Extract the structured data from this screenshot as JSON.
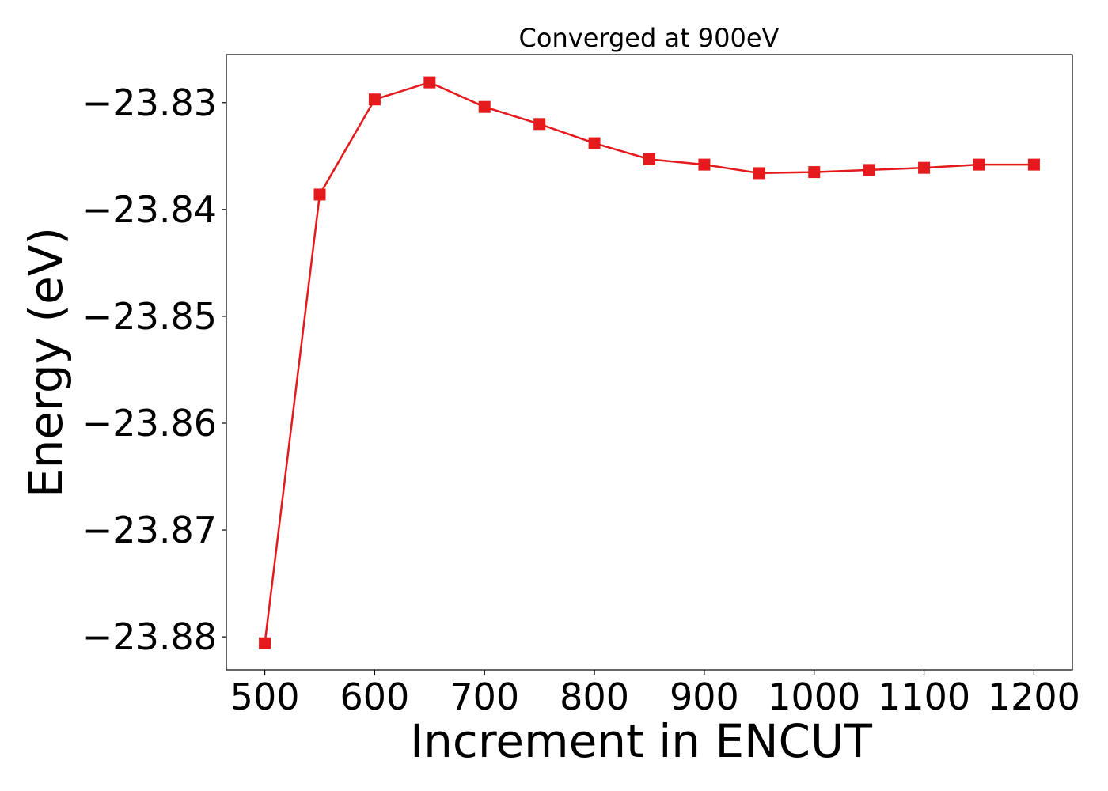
{
  "chart_data": {
    "type": "line",
    "title": "Converged at 900eV",
    "xlabel": "Increment in ENCUT",
    "ylabel": "Energy (eV)",
    "xlim": [
      465,
      1235
    ],
    "ylim": [
      -23.8831,
      -23.8255
    ],
    "xticks": [
      500,
      600,
      700,
      800,
      900,
      1000,
      1100,
      1200
    ],
    "yticks": [
      -23.83,
      -23.84,
      -23.85,
      -23.86,
      -23.87,
      -23.88
    ],
    "ytick_labels": [
      "−23.83",
      "−23.84",
      "−23.85",
      "−23.86",
      "−23.87",
      "−23.88"
    ],
    "grid": false,
    "marker": "square",
    "color": "#e41a1c",
    "series": [
      {
        "x": [
          500,
          550,
          600,
          650,
          700,
          750,
          800,
          850,
          900,
          950,
          1000,
          1050,
          1100,
          1150,
          1200
        ],
        "y": [
          -23.8806,
          -23.8386,
          -23.8297,
          -23.8281,
          -23.8304,
          -23.832,
          -23.8338,
          -23.8353,
          -23.8358,
          -23.8366,
          -23.8365,
          -23.8363,
          -23.8361,
          -23.8358,
          -23.8358
        ]
      }
    ]
  }
}
